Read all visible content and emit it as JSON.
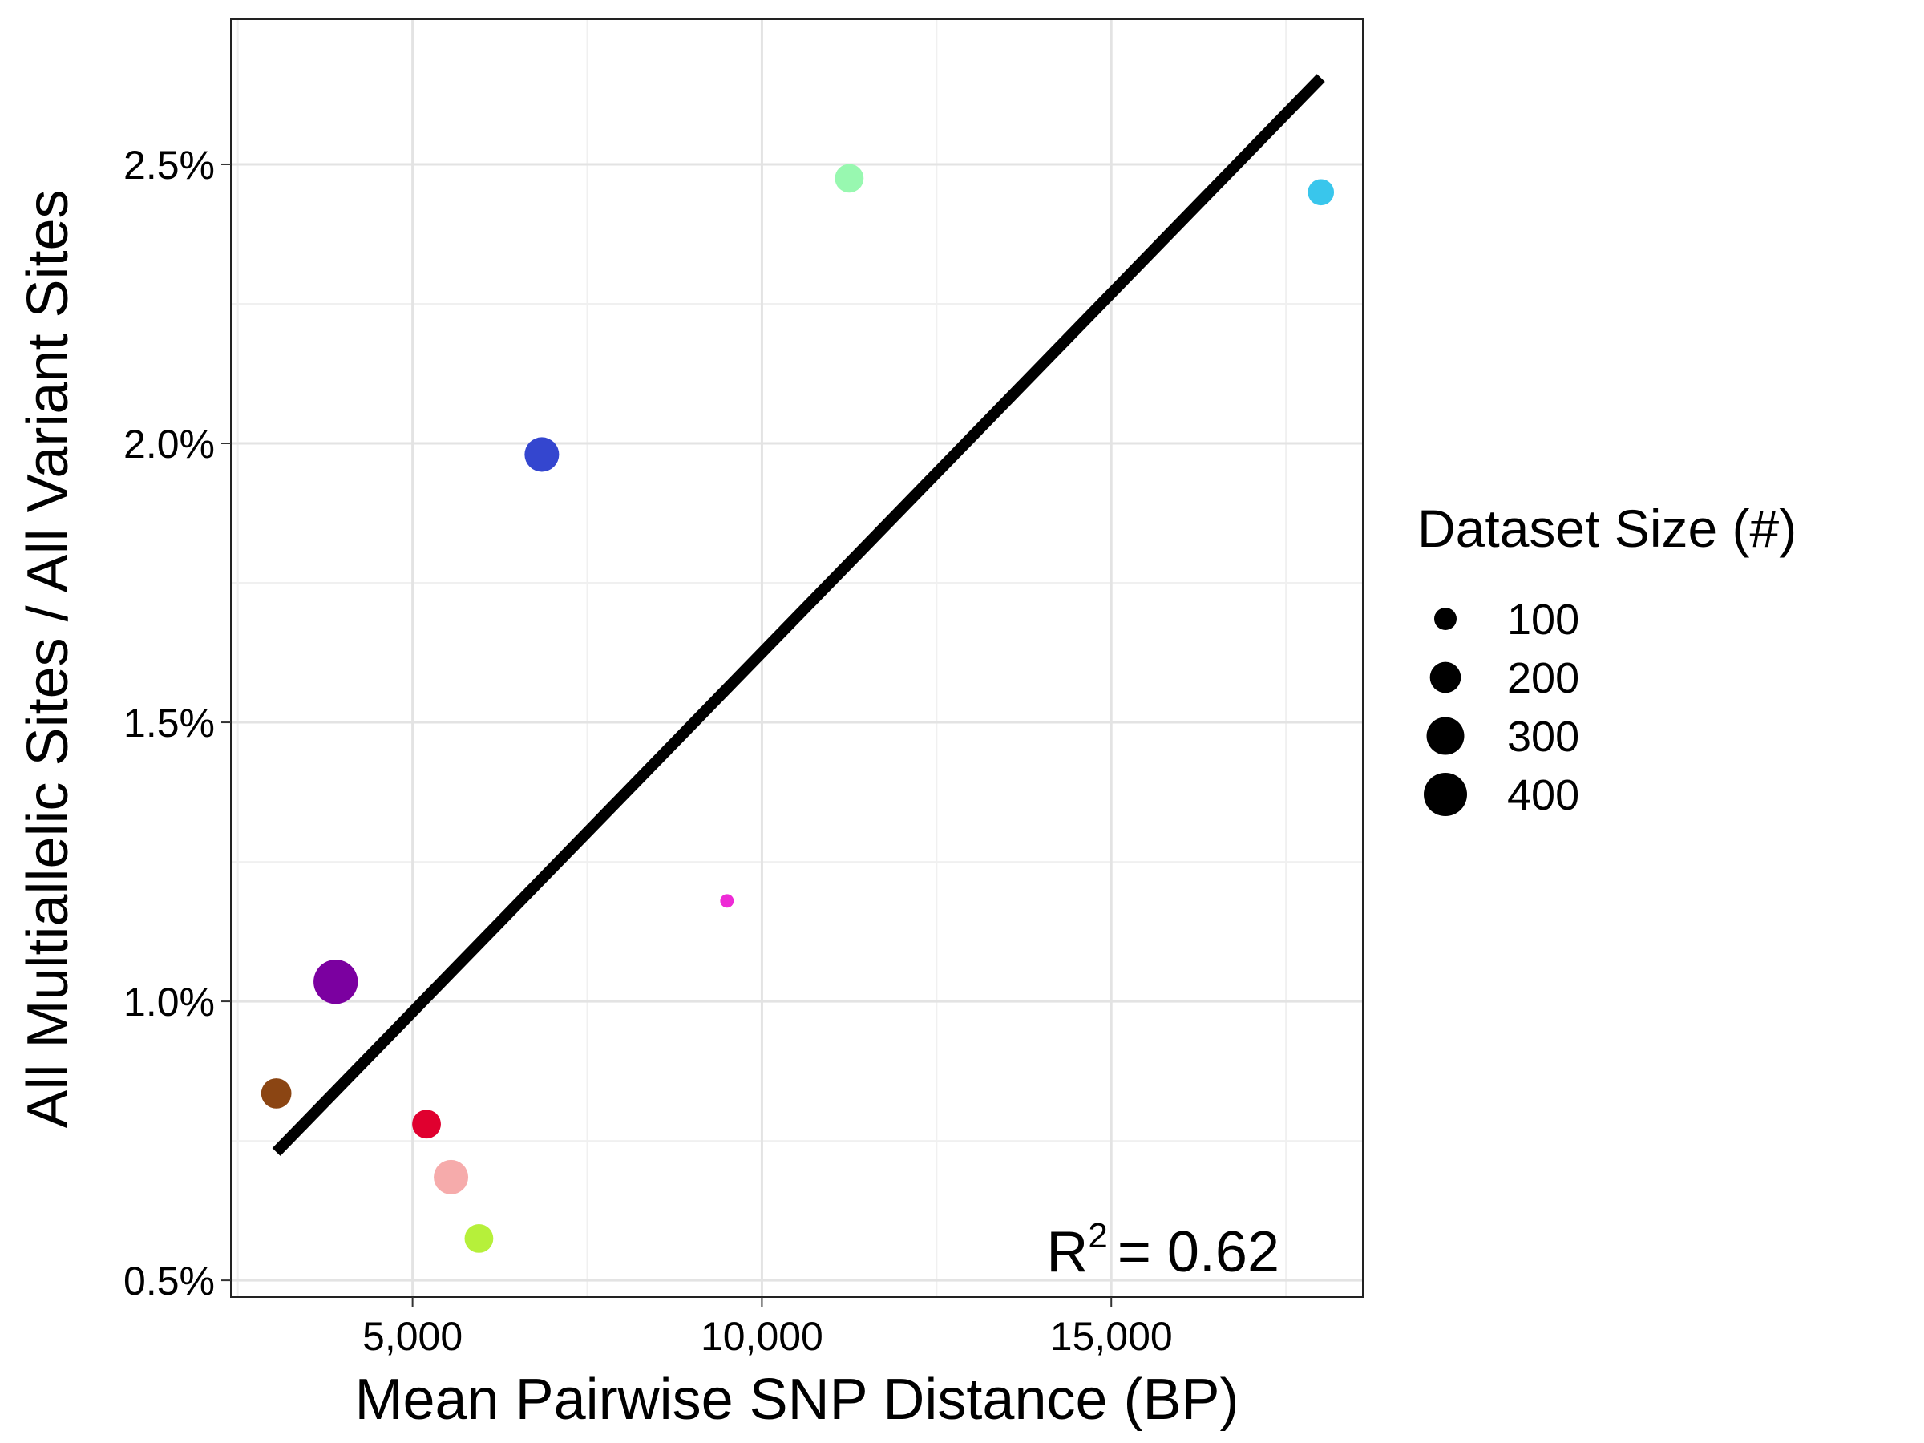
{
  "chart_data": {
    "type": "scatter",
    "xlabel": "Mean Pairwise SNP Distance (BP)",
    "ylabel": "All Multiallelic Sites / All Variant Sites",
    "xlim": [
      2400,
      18600
    ],
    "ylim": [
      0.47,
      2.76
    ],
    "x_ticks": [
      5000,
      10000,
      15000
    ],
    "x_tick_labels": [
      "5,000",
      "10,000",
      "15,000"
    ],
    "y_ticks": [
      0.5,
      1.0,
      1.5,
      2.0,
      2.5
    ],
    "y_tick_labels": [
      "0.5%",
      "1.0%",
      "1.5%",
      "2.0%",
      "2.5%"
    ],
    "grid": true,
    "points": [
      {
        "x": 3900,
        "y": 1.035,
        "size": 420,
        "color": "#7b00a0"
      },
      {
        "x": 3050,
        "y": 0.835,
        "size": 190,
        "color": "#8b4513"
      },
      {
        "x": 5200,
        "y": 0.78,
        "size": 170,
        "color": "#e0002f"
      },
      {
        "x": 5550,
        "y": 0.685,
        "size": 250,
        "color": "#f6abab"
      },
      {
        "x": 5950,
        "y": 0.575,
        "size": 170,
        "color": "#b6f03a"
      },
      {
        "x": 6850,
        "y": 1.98,
        "size": 250,
        "color": "#3446cf"
      },
      {
        "x": 9500,
        "y": 1.18,
        "size": 30,
        "color": "#ee2bd6"
      },
      {
        "x": 11250,
        "y": 2.475,
        "size": 170,
        "color": "#98f8b0"
      },
      {
        "x": 18000,
        "y": 2.45,
        "size": 140,
        "color": "#39c6ec"
      }
    ],
    "fit_line": {
      "x": [
        3050,
        18000
      ],
      "y": [
        0.73,
        2.655
      ],
      "color": "#000000"
    },
    "annotation": {
      "prefix": "R",
      "superscript": "2",
      "text": "=  0.62"
    },
    "legend": {
      "title": "Dataset Size (#)",
      "position": "right",
      "items": [
        {
          "label": "100",
          "size": 100
        },
        {
          "label": "200",
          "size": 200
        },
        {
          "label": "300",
          "size": 300
        },
        {
          "label": "400",
          "size": 400
        }
      ]
    }
  }
}
